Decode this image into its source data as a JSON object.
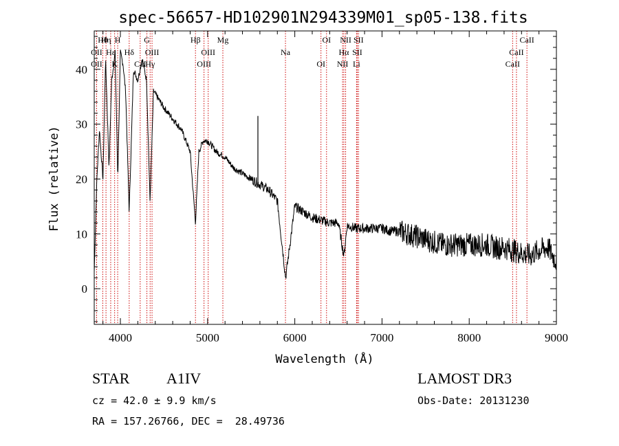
{
  "chart_data": {
    "type": "line",
    "title": "spec-56657-HD102901N294339M01_sp05-138.fits",
    "xlabel": "Wavelength (Å)",
    "ylabel": "Flux (relative)",
    "xlim": [
      3700,
      9000
    ],
    "ylim": [
      -6.5,
      47
    ],
    "xticks": [
      4000,
      5000,
      6000,
      7000,
      8000,
      9000
    ],
    "yticks": [
      0,
      10,
      20,
      30,
      40
    ],
    "spectrum_anchors": {
      "x": [
        3700,
        3730,
        3760,
        3800,
        3830,
        3870,
        3900,
        3940,
        3970,
        4000,
        4030,
        4060,
        4101,
        4150,
        4200,
        4250,
        4300,
        4340,
        4380,
        4420,
        4500,
        4600,
        4700,
        4800,
        4861,
        4900,
        4950,
        5000,
        5100,
        5200,
        5300,
        5400,
        5500,
        5600,
        5700,
        5800,
        5895,
        6000,
        6100,
        6200,
        6300,
        6400,
        6500,
        6563,
        6600,
        6700,
        6800,
        6900,
        7000,
        7100,
        7200,
        7300,
        7400,
        7500,
        7600,
        7700,
        7800,
        7900,
        8000,
        8100,
        8200,
        8300,
        8400,
        8500,
        8600,
        8700,
        8800,
        8900,
        9000
      ],
      "y": [
        3,
        20,
        29,
        20,
        42,
        22,
        38,
        43,
        20,
        43,
        41,
        36,
        14,
        40,
        38,
        42,
        38,
        16,
        36,
        35,
        33,
        31,
        29,
        25,
        12,
        25,
        27,
        27,
        25,
        24,
        22,
        21,
        20,
        19,
        18,
        16,
        2,
        15,
        14,
        13,
        12.5,
        12,
        12,
        6,
        11.5,
        11,
        11,
        11,
        11,
        10.5,
        10.5,
        10,
        9.5,
        9,
        8.5,
        8,
        8,
        8,
        8,
        8,
        8,
        7.5,
        7.5,
        7,
        6.5,
        6,
        7,
        7.5,
        5
      ]
    },
    "spectral_lines": [
      {
        "label": "Hθ",
        "wavelength": 3798
      },
      {
        "label": "OII",
        "wavelength": 3727
      },
      {
        "label": "OII",
        "wavelength": 3727
      },
      {
        "label": "Hη",
        "wavelength": 3835
      },
      {
        "label": "Hε",
        "wavelength": 3889
      },
      {
        "label": "K",
        "wavelength": 3934
      },
      {
        "label": "H",
        "wavelength": 3969
      },
      {
        "label": "Hδ",
        "wavelength": 4101
      },
      {
        "label": "CaI",
        "wavelength": 4227
      },
      {
        "label": "G",
        "wavelength": 4304
      },
      {
        "label": "OIII",
        "wavelength": 4363
      },
      {
        "label": "Hγ",
        "wavelength": 4341
      },
      {
        "label": "Hβ",
        "wavelength": 4861
      },
      {
        "label": "OIII",
        "wavelength": 5007
      },
      {
        "label": "OIII",
        "wavelength": 4959
      },
      {
        "label": "Mg",
        "wavelength": 5175
      },
      {
        "label": "Na",
        "wavelength": 5893
      },
      {
        "label": "OI",
        "wavelength": 6300
      },
      {
        "label": "OI",
        "wavelength": 6364
      },
      {
        "label": "Hα",
        "wavelength": 6563
      },
      {
        "label": "NII",
        "wavelength": 6548
      },
      {
        "label": "NII",
        "wavelength": 6583
      },
      {
        "label": "SII",
        "wavelength": 6716
      },
      {
        "label": "Li",
        "wavelength": 6708
      },
      {
        "label": "SII",
        "wavelength": 6731
      },
      {
        "label": "CaII",
        "wavelength": 8542
      },
      {
        "label": "CaII",
        "wavelength": 8498
      },
      {
        "label": "CaII",
        "wavelength": 8662
      }
    ],
    "annotations": {
      "object_type": "STAR",
      "spectral_class": "A1IV",
      "survey": "LAMOST DR3",
      "redshift_line": "cz = 42.0 ± 9.9 km/s",
      "obs_date_line": "Obs-Date: 20131230",
      "coords_line": "RA = 157.26766, DEC =  28.49736"
    }
  },
  "colors": {
    "spectrum": "#000000",
    "line_markers": "#cc0000",
    "axes": "#000000",
    "background": "#ffffff"
  }
}
